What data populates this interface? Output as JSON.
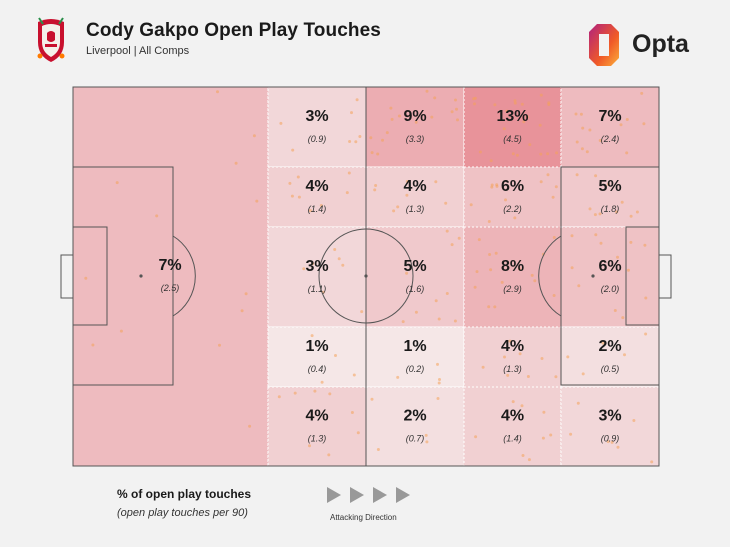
{
  "header": {
    "title": "Cody Gakpo Open Play Touches",
    "subtitle": "Liverpool | All Comps"
  },
  "brand": {
    "name": "Opta",
    "colors": [
      "#f05a28",
      "#b0217f",
      "#fbb03b"
    ]
  },
  "colors": {
    "zone_high": "#e8939a",
    "zone_low": "#f5f0f0",
    "background": "#f2f2f2",
    "lines": "#555555"
  },
  "legend": {
    "title": "% of open play touches",
    "subtitle": "(open play touches per 90)",
    "direction_label": "Attacking Direction",
    "direction_icon": "play-arrow-icon"
  },
  "chart_data": {
    "type": "heatmap",
    "zones": [
      {
        "id": "defensive-third",
        "pct": "7%",
        "per90": "(2.5)",
        "value": 7
      },
      {
        "id": "r1c1",
        "pct": "3%",
        "per90": "(0.9)",
        "value": 3
      },
      {
        "id": "r1c2",
        "pct": "9%",
        "per90": "(3.3)",
        "value": 9
      },
      {
        "id": "r1c3",
        "pct": "13%",
        "per90": "(4.5)",
        "value": 13
      },
      {
        "id": "r1c4",
        "pct": "7%",
        "per90": "(2.4)",
        "value": 7
      },
      {
        "id": "r2c1",
        "pct": "4%",
        "per90": "(1.4)",
        "value": 4
      },
      {
        "id": "r2c2",
        "pct": "4%",
        "per90": "(1.3)",
        "value": 4
      },
      {
        "id": "r2c3",
        "pct": "6%",
        "per90": "(2.2)",
        "value": 6
      },
      {
        "id": "r2c4",
        "pct": "5%",
        "per90": "(1.8)",
        "value": 5
      },
      {
        "id": "r3c1",
        "pct": "3%",
        "per90": "(1.1)",
        "value": 3
      },
      {
        "id": "r3c2",
        "pct": "5%",
        "per90": "(1.6)",
        "value": 5
      },
      {
        "id": "r3c3",
        "pct": "8%",
        "per90": "(2.9)",
        "value": 8
      },
      {
        "id": "r3c4",
        "pct": "6%",
        "per90": "(2.0)",
        "value": 6
      },
      {
        "id": "r4c1",
        "pct": "1%",
        "per90": "(0.4)",
        "value": 1
      },
      {
        "id": "r4c2",
        "pct": "1%",
        "per90": "(0.2)",
        "value": 1
      },
      {
        "id": "r4c3",
        "pct": "4%",
        "per90": "(1.3)",
        "value": 4
      },
      {
        "id": "r4c4",
        "pct": "2%",
        "per90": "(0.5)",
        "value": 2
      },
      {
        "id": "r5c1",
        "pct": "4%",
        "per90": "(1.3)",
        "value": 4
      },
      {
        "id": "r5c2",
        "pct": "2%",
        "per90": "(0.7)",
        "value": 2
      },
      {
        "id": "r5c3",
        "pct": "4%",
        "per90": "(1.4)",
        "value": 4
      },
      {
        "id": "r5c4",
        "pct": "3%",
        "per90": "(0.9)",
        "value": 3
      }
    ]
  }
}
